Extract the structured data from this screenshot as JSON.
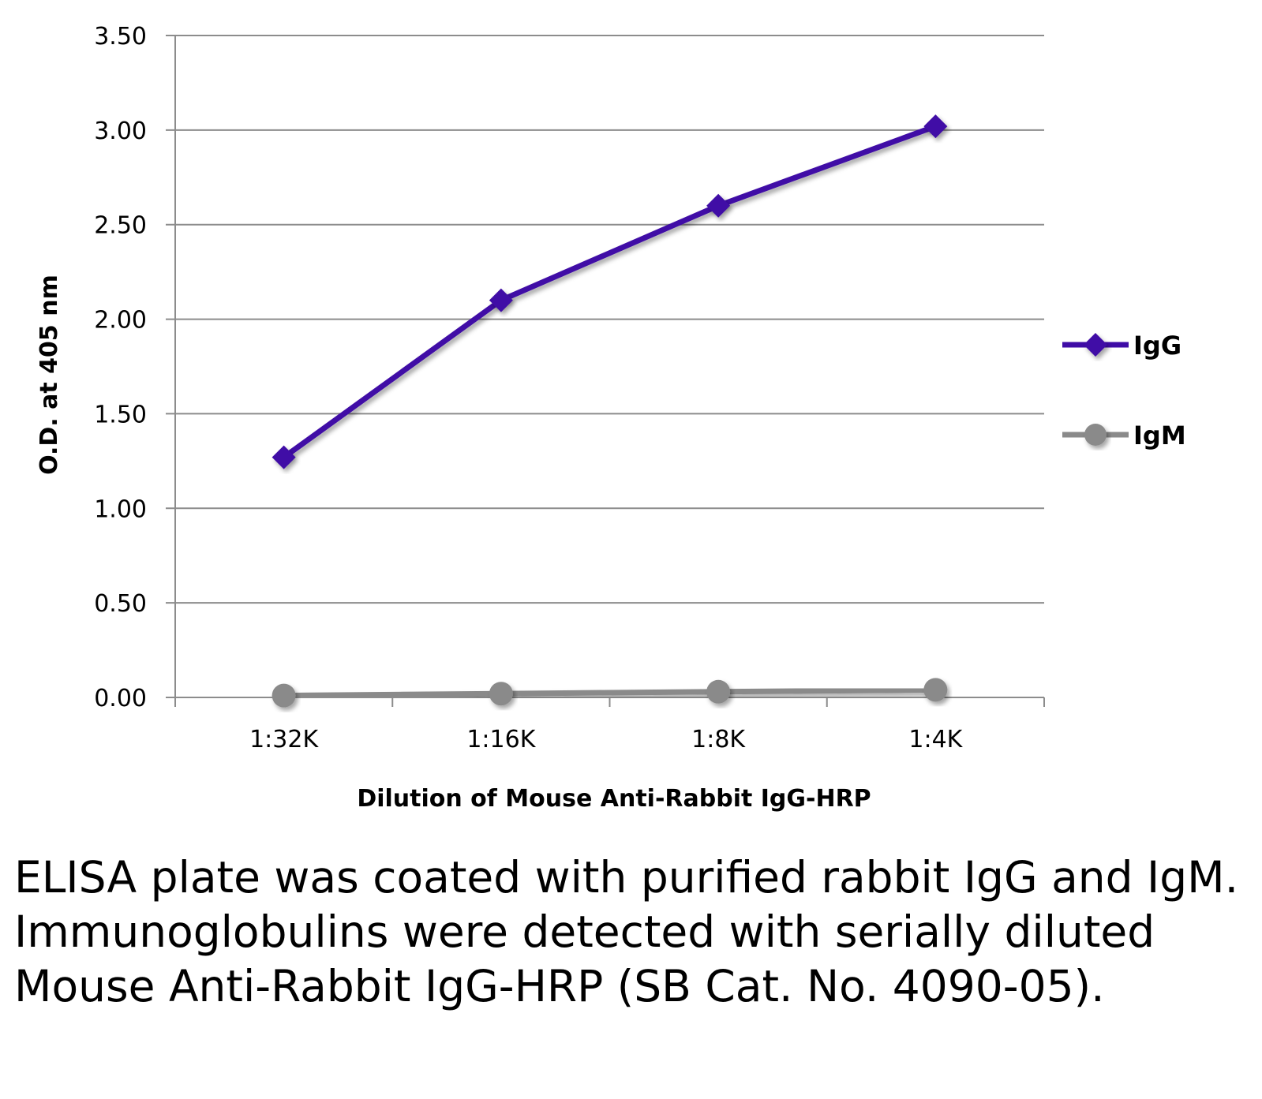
{
  "chart_data": {
    "type": "line",
    "title": "",
    "xlabel": "Dilution of Mouse Anti-Rabbit IgG-HRP",
    "ylabel": "O.D. at 405 nm",
    "categories": [
      "1:32K",
      "1:16K",
      "1:8K",
      "1:4K"
    ],
    "ylim": [
      0,
      3.5
    ],
    "yticks": [
      "0.00",
      "0.50",
      "1.00",
      "1.50",
      "2.00",
      "2.50",
      "3.00",
      "3.50"
    ],
    "grid": true,
    "legend_position": "right",
    "series": [
      {
        "name": "IgG",
        "values": [
          1.27,
          2.1,
          2.6,
          3.02
        ],
        "color": "#3f0ca6",
        "marker": "diamond"
      },
      {
        "name": "IgM",
        "values": [
          0.01,
          0.02,
          0.03,
          0.04
        ],
        "color": "#8a8a8a",
        "marker": "circle"
      }
    ]
  },
  "caption": "ELISA plate was coated with purified rabbit IgG and IgM.  Immunoglobulins were detected with serially diluted Mouse Anti-Rabbit IgG-HRP (SB Cat. No. 4090-05)."
}
